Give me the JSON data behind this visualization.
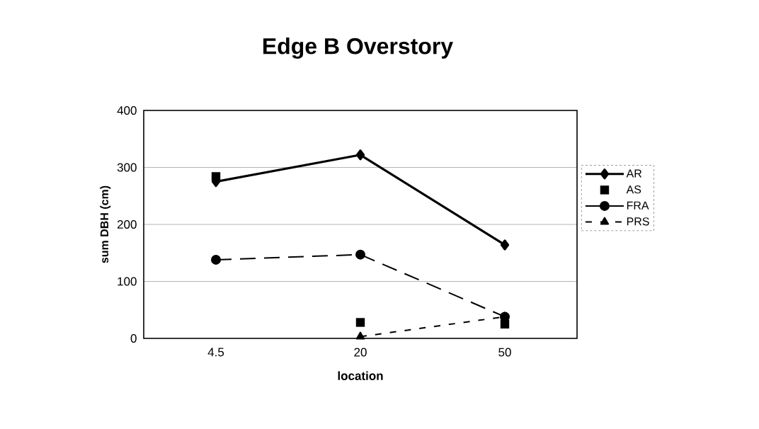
{
  "chart_data": {
    "type": "line",
    "title": "Edge B Overstory",
    "xlabel": "location",
    "ylabel": "sum DBH (cm)",
    "categories": [
      "4.5",
      "20",
      "50"
    ],
    "series": [
      {
        "name": "AR",
        "color": "#000000",
        "values": [
          275,
          322,
          164
        ],
        "marker": "diamond",
        "line_style": "solid"
      },
      {
        "name": "AS",
        "color": "#000000",
        "values": [
          284,
          28,
          25
        ],
        "type": "scatter",
        "marker": "square"
      },
      {
        "name": "FRA",
        "color": "#000000",
        "values": [
          138,
          147,
          38
        ],
        "marker": "circle",
        "line_style": "dashed"
      },
      {
        "name": "PRS",
        "color": "#000000",
        "values": [
          null,
          3,
          38
        ],
        "marker": "triangle",
        "line_style": "dotted"
      }
    ],
    "ylim": [
      0,
      400
    ],
    "yticks": [
      0,
      100,
      200,
      300,
      400
    ],
    "grid": "y",
    "legend": "right"
  }
}
